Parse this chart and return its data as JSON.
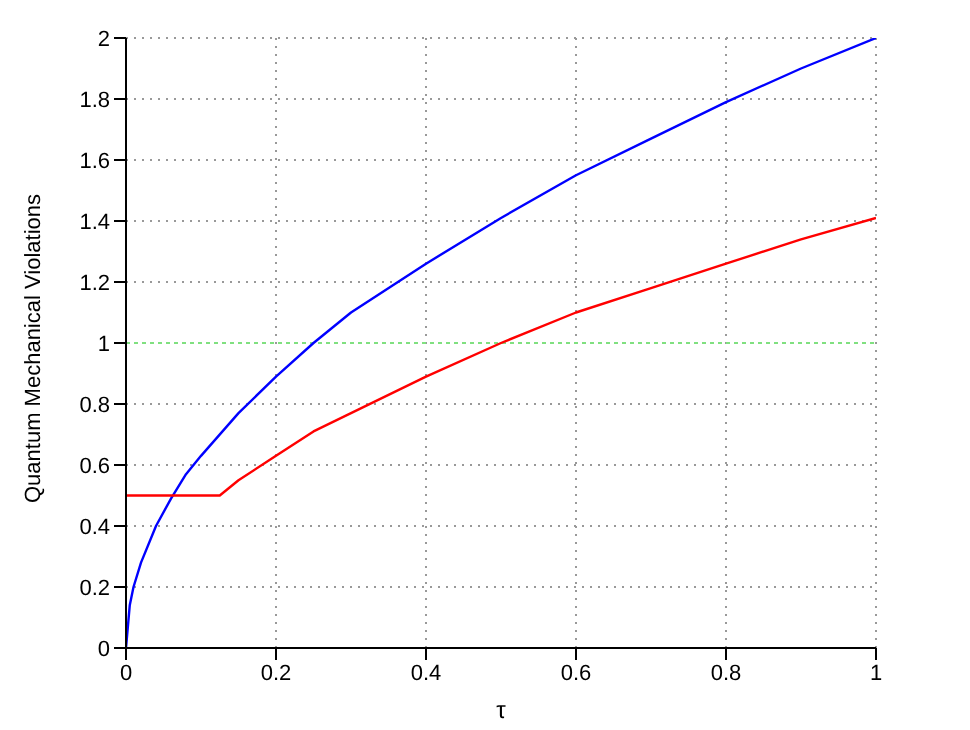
{
  "chart_data": {
    "type": "line",
    "xlabel": "τ",
    "ylabel": "Quantum Mechanical Violations",
    "xlim": [
      0,
      1
    ],
    "ylim": [
      0,
      2
    ],
    "xticks": [
      0,
      0.2,
      0.4,
      0.6,
      0.8,
      1
    ],
    "yticks": [
      0,
      0.2,
      0.4,
      0.6,
      0.8,
      1,
      1.2,
      1.4,
      1.6,
      1.8,
      2
    ],
    "grid": true,
    "series": [
      {
        "color": "#0000ff",
        "x": [
          0,
          0.005,
          0.01,
          0.02,
          0.04,
          0.06,
          0.08,
          0.1,
          0.15,
          0.2,
          0.25,
          0.3,
          0.4,
          0.5,
          0.6,
          0.7,
          0.8,
          0.9,
          1
        ],
        "values": [
          0,
          0.14,
          0.2,
          0.28,
          0.4,
          0.49,
          0.57,
          0.63,
          0.77,
          0.89,
          1,
          1.1,
          1.26,
          1.41,
          1.55,
          1.67,
          1.79,
          1.9,
          2
        ]
      },
      {
        "color": "#ff0000",
        "x": [
          0,
          0.125,
          0.15,
          0.2,
          0.25,
          0.3,
          0.4,
          0.5,
          0.6,
          0.7,
          0.8,
          0.9,
          1
        ],
        "values": [
          0.5,
          0.5,
          0.55,
          0.63,
          0.71,
          0.77,
          0.89,
          1,
          1.1,
          1.18,
          1.26,
          1.34,
          1.41
        ]
      }
    ],
    "ref_lines": [
      {
        "axis": "y",
        "value": 1,
        "color": "#80e080",
        "line_style": "dotted"
      }
    ]
  }
}
